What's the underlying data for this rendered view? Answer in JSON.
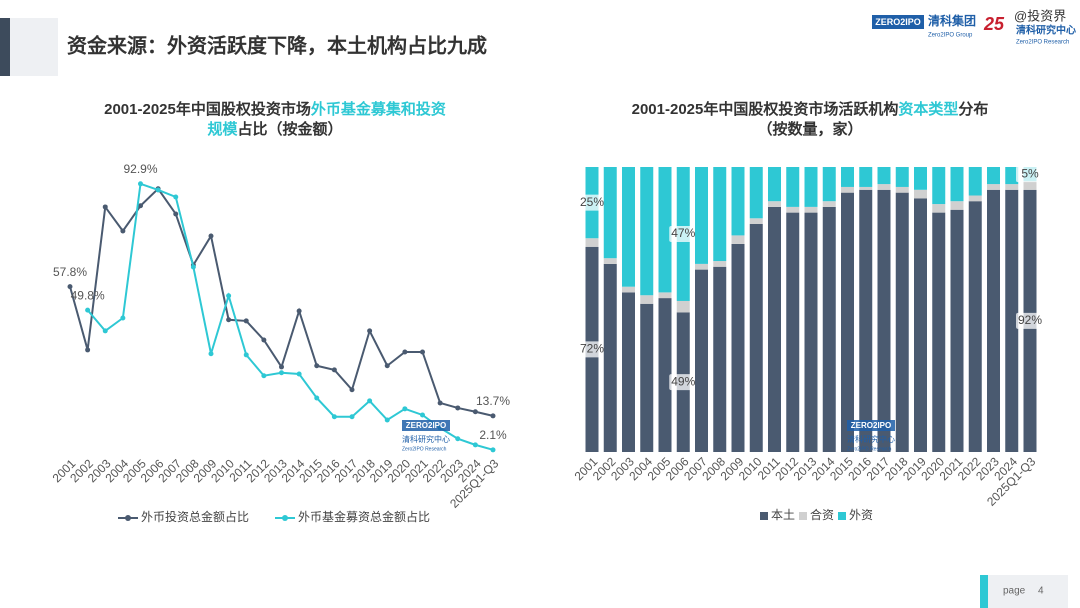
{
  "header": {
    "title": "资金来源：外资活跃度下降，本土机构占比九成"
  },
  "logos": {
    "zero2ipo": "ZERO2IPO",
    "group_cn": "清科集团",
    "group_en": "Zero2IPO Group",
    "anniversary": "25",
    "research_cn": "清科研究中心",
    "research_en": "Zero2IPO Research",
    "watermark": "@投资界"
  },
  "chart_data": [
    {
      "type": "line",
      "title": [
        [
          {
            "text": "2001-2025年中国股权投资市场",
            "highlight": false
          },
          {
            "text": "外币基金募集和投资",
            "highlight": true
          }
        ],
        [
          {
            "text": "规模",
            "highlight": true
          },
          {
            "text": "占比（按金额）",
            "highlight": false
          }
        ]
      ],
      "categories": [
        "2001",
        "2002",
        "2003",
        "2004",
        "2005",
        "2006",
        "2007",
        "2008",
        "2009",
        "2010",
        "2011",
        "2012",
        "2013",
        "2014",
        "2015",
        "2016",
        "2017",
        "2018",
        "2019",
        "2020",
        "2021",
        "2022",
        "2023",
        "2024",
        "2025Q1-Q3"
      ],
      "series": [
        {
          "name": "外币投资总金额占比",
          "color": "#4a5a70",
          "values": [
            57.8,
            36.2,
            85.0,
            76.8,
            85.4,
            91.2,
            82.6,
            65.2,
            75.1,
            46.5,
            46.1,
            39.6,
            30.4,
            49.5,
            30.8,
            29.4,
            22.6,
            42.7,
            30.8,
            35.5,
            35.5,
            18.1,
            16.4,
            15.1,
            13.7
          ],
          "value_labels": [
            "57.8%",
            null,
            null,
            null,
            null,
            null,
            null,
            null,
            null,
            null,
            null,
            null,
            null,
            null,
            null,
            null,
            null,
            null,
            null,
            null,
            null,
            null,
            null,
            null,
            "13.7%"
          ]
        },
        {
          "name": "外币基金募资总金额占比",
          "color": "#2ec8d4",
          "values": [
            null,
            49.8,
            42.7,
            47.1,
            92.9,
            90.8,
            88.4,
            64.5,
            34.9,
            54.7,
            34.5,
            27.4,
            28.4,
            28.0,
            19.8,
            13.4,
            13.4,
            18.8,
            12.3,
            16.1,
            14.0,
            9.6,
            5.9,
            3.8,
            2.1
          ],
          "value_labels": [
            null,
            "49.8%",
            null,
            null,
            "92.9%",
            null,
            null,
            null,
            null,
            null,
            null,
            null,
            null,
            null,
            null,
            null,
            null,
            null,
            null,
            null,
            null,
            null,
            null,
            null,
            "2.1%"
          ]
        }
      ],
      "ylim": [
        0,
        100
      ],
      "legend": "bottom"
    },
    {
      "type": "bar",
      "stacked": true,
      "title": [
        [
          {
            "text": "2001-2025年中国股权投资市场活跃机构",
            "highlight": false
          },
          {
            "text": "资本类型",
            "highlight": true
          },
          {
            "text": "分布",
            "highlight": false
          }
        ],
        [
          {
            "text": "（按数量，家）",
            "highlight": false
          }
        ]
      ],
      "categories": [
        "2001",
        "2002",
        "2003",
        "2004",
        "2005",
        "2006",
        "2007",
        "2008",
        "2009",
        "2010",
        "2011",
        "2012",
        "2013",
        "2014",
        "2015",
        "2016",
        "2017",
        "2018",
        "2019",
        "2020",
        "2021",
        "2022",
        "2023",
        "2024",
        "2025Q1-Q3"
      ],
      "series": [
        {
          "name": "本土",
          "color": "#4a5a70",
          "values": [
            72,
            66,
            56,
            52,
            54,
            49,
            64,
            65,
            73,
            80,
            86,
            84,
            84,
            86,
            91,
            92,
            92,
            91,
            89,
            84,
            85,
            88,
            92,
            92,
            92
          ],
          "value_labels": [
            "72%",
            null,
            null,
            null,
            null,
            "49%",
            null,
            null,
            null,
            null,
            null,
            null,
            null,
            null,
            null,
            null,
            null,
            null,
            null,
            null,
            null,
            null,
            null,
            null,
            "92%"
          ]
        },
        {
          "name": "合资",
          "color": "#d0d0d0",
          "values": [
            3,
            2,
            2,
            3,
            2,
            4,
            2,
            2,
            3,
            2,
            2,
            2,
            2,
            2,
            2,
            1,
            2,
            2,
            3,
            3,
            3,
            2,
            2,
            2,
            3
          ]
        },
        {
          "name": "外资",
          "color": "#2ec8d4",
          "values": [
            25,
            32,
            42,
            45,
            44,
            47,
            34,
            33,
            24,
            18,
            12,
            14,
            14,
            12,
            7,
            7,
            6,
            7,
            8,
            13,
            12,
            10,
            6,
            6,
            5
          ],
          "value_labels": [
            "25%",
            null,
            null,
            null,
            null,
            "47%",
            null,
            null,
            null,
            null,
            null,
            null,
            null,
            null,
            null,
            null,
            null,
            null,
            null,
            null,
            null,
            null,
            null,
            null,
            "5%"
          ]
        }
      ],
      "ylim": [
        0,
        100
      ],
      "legend": "bottom"
    }
  ],
  "footer": {
    "page_label": "page",
    "page_number": 4
  }
}
